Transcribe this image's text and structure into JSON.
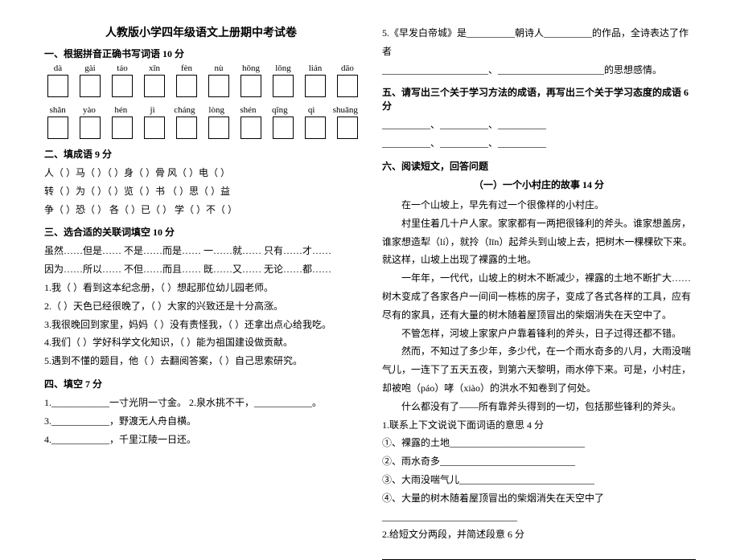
{
  "title": "人教版小学四年级语文上册期中考试卷",
  "section1": {
    "heading": "一、根据拼音正确书写词语  10 分",
    "pinyin_row1": [
      "dà",
      "gài",
      "táo",
      "xīn",
      "fèn",
      "nù",
      "hōng",
      "lōng",
      "lián",
      "dāo"
    ],
    "pinyin_row2": [
      "shǎn",
      "yào",
      "hén",
      "jì",
      "cháng",
      "lòng",
      "shén",
      "qīng",
      "qì",
      "shuǎng"
    ]
  },
  "section2": {
    "heading": "二、填成语   9 分",
    "line1": "人（   ）马（   ）（   ）身（   ）骨   风（   ）电（   ）",
    "line2": "转（   ）为（   ）（   ）览（   ）书    （   ）思（   ）益",
    "line3": "争（   ）恐（   ）   各（   ）已（   ）   学（   ）不（   ）"
  },
  "section3": {
    "heading": "三、选合适的关联词填空  10 分",
    "line1": "虽然……但是……    不是……而是……    一……就……    只有……才……",
    "line2": "因为……所以……    不但……而且……    既……又……    无论……都……",
    "item1": "1.我（       ）看到这本纪念册，（       ）想起那位幼儿园老师。",
    "item2": "2.（       ）天色已经很晚了，（       ）大家的兴致还是十分高涨。",
    "item3": "3.我很晚回到家里，妈妈（       ）没有责怪我，（       ）还拿出点心给我吃。",
    "item4": "4.我们（       ）学好科学文化知识，（       ）能为祖国建设做贡献。",
    "item5": "5.遇到不懂的题目，他（       ）去翻阅答案，（       ）自己思索研究。"
  },
  "section4": {
    "heading": "四、填空  7 分",
    "item1": "1.____________一寸光阴一寸金。  2.泉水挑不干，____________。",
    "item2": "3.____________，野渡无人舟自横。",
    "item3": "4.____________，千里江陵一日还。",
    "item5a": "5.《早发白帝城》是__________朝诗人__________的作品，全诗表达了作者",
    "item5b": "______________________、______________________的思想感情。"
  },
  "section5": {
    "heading": "五、请写出三个关于学习方法的成语，再写出三个关于学习态度的成语  6 分",
    "line1": "__________、__________、__________",
    "line2": "__________、__________、__________"
  },
  "section6": {
    "heading": "六、阅读短文，回答问题",
    "subtitle": "（一）一个小村庄的故事  14 分",
    "p1": "在一个山坡上，早先有过一个很像样的小村庄。",
    "p2": "村里住着几十户人家。家家都有一两把很锋利的斧头。谁家想盖房，谁家想造犁（lí），就拎（līn）起斧头到山坡上去，把树木一棵棵砍下来。就这样，山坡上出现了裸露的土地。",
    "p3": "一年年，一代代，山坡上的树木不断减少，裸露的土地不断扩大……树木变成了各家各户一间间一栋栋的房子，变成了各式各样的工具，应有尽有的家具，还有大量的树木随着屋顶冒出的柴烟消失在天空中了。",
    "p4": "不管怎样，河坡上家家户户靠着锋利的斧头，日子过得还都不错。",
    "p5": "然而，不知过了多少年，多少代，在一个雨水奇多的八月，大雨没喘气儿，一连下了五天五夜，到第六天黎明，雨水停下来。可是，小村庄，却被咆（páo）哮（xiào）的洪水不知卷到了何处。",
    "p6": "什么都没有了——所有靠斧头得到的一切，包括那些锋利的斧头。",
    "q1": "1.联系上下文说说下面词语的意思  4 分",
    "q1a": "①、裸露的土地____________________________",
    "q1b": "②、雨水奇多____________________________",
    "q1c": "③、大雨没喘气儿____________________________",
    "q1d": "④、大量的树木随着屋顶冒出的柴烟消失在天空中了____________________________",
    "q2": "2.给短文分两段，并简述段意  6 分"
  }
}
